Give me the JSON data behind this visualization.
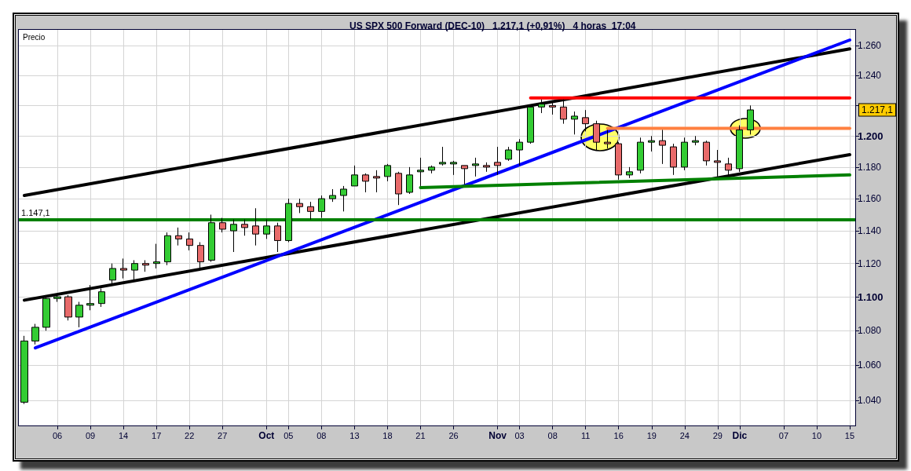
{
  "chart_data": {
    "type": "candlestick",
    "title": "US SPX 500 Forward (DEC-10)   1.217,1 (+0,91%)   4 horas  17:04",
    "ylabel": "Precio",
    "categories": [
      null,
      null,
      null,
      "06",
      null,
      null,
      "09",
      null,
      null,
      "14",
      null,
      null,
      "17",
      null,
      null,
      "22",
      null,
      null,
      "27",
      null,
      null,
      null,
      "Oct",
      null,
      "05",
      null,
      null,
      "08",
      null,
      null,
      "13",
      null,
      null,
      "18",
      null,
      null,
      "21",
      null,
      null,
      "26",
      null,
      null,
      null,
      "Nov",
      null,
      "03",
      null,
      null,
      "08",
      null,
      null,
      "11",
      null,
      null,
      "16",
      null,
      null,
      "19",
      null,
      null,
      "24",
      null,
      null,
      "29",
      null,
      "Dic",
      null,
      null,
      null,
      "07",
      null,
      null,
      "10",
      null,
      null,
      "15"
    ],
    "ohlc": [
      [
        1039,
        1077,
        1038,
        1074
      ],
      [
        1074,
        1084,
        1072,
        1082
      ],
      [
        1082,
        1101,
        1080,
        1099
      ],
      [
        1099,
        1102,
        1097,
        1100
      ],
      [
        1100,
        1101,
        1086,
        1088
      ],
      [
        1088,
        1097,
        1082,
        1095
      ],
      [
        1095,
        1107,
        1092,
        1096
      ],
      [
        1096,
        1105,
        1094,
        1103
      ],
      [
        1110,
        1120,
        1108,
        1117
      ],
      [
        1117,
        1123,
        1111,
        1116
      ],
      [
        1116,
        1122,
        1110,
        1120
      ],
      [
        1120,
        1122,
        1115,
        1119
      ],
      [
        1120,
        1132,
        1117,
        1121
      ],
      [
        1121,
        1139,
        1119,
        1137
      ],
      [
        1137,
        1142,
        1131,
        1135
      ],
      [
        1135,
        1139,
        1128,
        1131
      ],
      [
        1131,
        1133,
        1116,
        1121
      ],
      [
        1122,
        1150,
        1121,
        1145
      ],
      [
        1145,
        1148,
        1139,
        1141
      ],
      [
        1140,
        1147,
        1127,
        1144
      ],
      [
        1144,
        1147,
        1137,
        1142
      ],
      [
        1143,
        1154,
        1131,
        1138
      ],
      [
        1138,
        1147,
        1135,
        1143
      ],
      [
        1143,
        1145,
        1127,
        1134
      ],
      [
        1134,
        1160,
        1133,
        1157
      ],
      [
        1157,
        1160,
        1151,
        1155
      ],
      [
        1155,
        1158,
        1147,
        1152
      ],
      [
        1152,
        1162,
        1148,
        1160
      ],
      [
        1160,
        1166,
        1158,
        1162
      ],
      [
        1162,
        1168,
        1152,
        1166
      ],
      [
        1168,
        1181,
        1168,
        1175
      ],
      [
        1175,
        1176,
        1164,
        1171
      ],
      [
        1174,
        1178,
        1164,
        1173
      ],
      [
        1174,
        1182,
        1171,
        1181
      ],
      [
        1176,
        1177,
        1156,
        1163
      ],
      [
        1164,
        1180,
        1163,
        1175
      ],
      [
        1177,
        1186,
        1168,
        1178
      ],
      [
        1178,
        1181,
        1176,
        1180
      ],
      [
        1182,
        1193,
        1181,
        1183
      ],
      [
        1182,
        1184,
        1175,
        1183
      ],
      [
        1181,
        1181,
        1169,
        1179
      ],
      [
        1181,
        1186,
        1174,
        1182
      ],
      [
        1181,
        1183,
        1177,
        1180
      ],
      [
        1183,
        1193,
        1175,
        1181
      ],
      [
        1185,
        1193,
        1184,
        1191
      ],
      [
        1191,
        1198,
        1181,
        1196
      ],
      [
        1196,
        1220,
        1195,
        1219
      ],
      [
        1219,
        1224,
        1215,
        1221
      ],
      [
        1220,
        1222,
        1214,
        1219
      ],
      [
        1219,
        1224,
        1208,
        1211
      ],
      [
        1211,
        1216,
        1201,
        1213
      ],
      [
        1212,
        1217,
        1203,
        1208
      ],
      [
        1208,
        1210,
        1191,
        1196
      ],
      [
        1196,
        1204,
        1192,
        1195
      ],
      [
        1195,
        1196,
        1172,
        1175
      ],
      [
        1175,
        1180,
        1173,
        1177
      ],
      [
        1178,
        1199,
        1176,
        1196
      ],
      [
        1196,
        1200,
        1190,
        1197
      ],
      [
        1197,
        1204,
        1182,
        1194
      ],
      [
        1193,
        1195,
        1175,
        1180
      ],
      [
        1180,
        1199,
        1178,
        1196
      ],
      [
        1196,
        1200,
        1194,
        1197
      ],
      [
        1196,
        1197,
        1181,
        1184
      ],
      [
        1184,
        1191,
        1174,
        1183
      ],
      [
        1182,
        1186,
        1174,
        1178
      ],
      [
        1179,
        1207,
        1177,
        1204
      ],
      [
        1204,
        1220,
        1201,
        1217.1
      ],
      null,
      null,
      null,
      null,
      null,
      null,
      null,
      null,
      null
    ],
    "colors": [
      "#33cc33",
      "#33cc33",
      "#33cc33",
      "#33cc33",
      "#e86a6a",
      "#33cc33",
      "#33cc33",
      "#33cc33",
      "#33cc33",
      "#e86a6a",
      "#33cc33",
      "#e86a6a",
      "#33cc33",
      "#33cc33",
      "#e86a6a",
      "#e86a6a",
      "#e86a6a",
      "#33cc33",
      "#e86a6a",
      "#33cc33",
      "#e86a6a",
      "#e86a6a",
      "#33cc33",
      "#e86a6a",
      "#33cc33",
      "#e86a6a",
      "#e86a6a",
      "#33cc33",
      "#33cc33",
      "#33cc33",
      "#33cc33",
      "#e86a6a",
      "#e86a6a",
      "#33cc33",
      "#e86a6a",
      "#33cc33",
      "#33cc33",
      "#33cc33",
      "#33cc33",
      "#33cc33",
      "#e86a6a",
      "#33cc33",
      "#e86a6a",
      "#e86a6a",
      "#33cc33",
      "#33cc33",
      "#33cc33",
      "#33cc33",
      "#e86a6a",
      "#e86a6a",
      "#33cc33",
      "#e86a6a",
      "#e86a6a",
      "#e86a6a",
      "#e86a6a",
      "#33cc33",
      "#33cc33",
      "#33cc33",
      "#e86a6a",
      "#e86a6a",
      "#33cc33",
      "#33cc33",
      "#e86a6a",
      "#e86a6a",
      "#e86a6a",
      "#33cc33",
      "#33cc33",
      null,
      null,
      null,
      null,
      null,
      null,
      null,
      null,
      null
    ],
    "series": [
      {
        "type": "line",
        "color": "#000000",
        "values": [
          1162,
          null,
          null,
          null,
          null,
          null,
          null,
          null,
          null,
          null,
          null,
          null,
          null,
          null,
          null,
          null,
          null,
          null,
          null,
          null,
          null,
          null,
          null,
          null,
          null,
          null,
          null,
          null,
          null,
          null,
          null,
          null,
          null,
          null,
          null,
          null,
          null,
          null,
          null,
          null,
          null,
          null,
          null,
          null,
          null,
          null,
          null,
          null,
          null,
          null,
          null,
          null,
          null,
          null,
          null,
          null,
          null,
          null,
          null,
          null,
          null,
          null,
          null,
          null,
          null,
          null,
          null,
          null,
          null,
          null,
          null,
          null,
          null,
          null,
          null,
          1258
        ]
      },
      {
        "type": "line",
        "color": "#000000",
        "values": [
          1098,
          null,
          null,
          null,
          null,
          null,
          null,
          null,
          null,
          null,
          null,
          null,
          null,
          null,
          null,
          null,
          null,
          null,
          null,
          null,
          null,
          null,
          null,
          null,
          null,
          null,
          null,
          null,
          null,
          null,
          null,
          null,
          null,
          null,
          null,
          null,
          null,
          null,
          null,
          null,
          null,
          null,
          null,
          null,
          null,
          null,
          null,
          null,
          null,
          null,
          null,
          null,
          null,
          null,
          null,
          null,
          null,
          null,
          null,
          null,
          null,
          null,
          null,
          null,
          null,
          null,
          null,
          null,
          null,
          null,
          null,
          null,
          null,
          null,
          null,
          1188
        ]
      },
      {
        "type": "line",
        "color": "#0000ff",
        "values": [
          null,
          1070,
          null,
          null,
          null,
          null,
          null,
          null,
          null,
          null,
          null,
          null,
          null,
          null,
          null,
          null,
          null,
          null,
          null,
          null,
          null,
          null,
          null,
          null,
          null,
          null,
          null,
          null,
          null,
          null,
          null,
          null,
          null,
          null,
          null,
          null,
          null,
          null,
          null,
          null,
          null,
          null,
          null,
          null,
          null,
          null,
          null,
          null,
          null,
          null,
          null,
          null,
          null,
          null,
          null,
          null,
          null,
          null,
          null,
          null,
          null,
          null,
          null,
          null,
          null,
          null,
          null,
          null,
          null,
          null,
          null,
          null,
          null,
          null,
          null,
          1264
        ]
      },
      {
        "type": "line",
        "color": "#008000",
        "values": [
          null,
          null,
          null,
          null,
          null,
          null,
          null,
          null,
          null,
          null,
          null,
          null,
          null,
          null,
          null,
          null,
          null,
          null,
          null,
          null,
          null,
          null,
          null,
          null,
          null,
          null,
          null,
          null,
          null,
          null,
          null,
          null,
          null,
          null,
          null,
          null,
          1167,
          null,
          null,
          null,
          null,
          null,
          null,
          null,
          null,
          null,
          null,
          null,
          null,
          null,
          null,
          null,
          null,
          null,
          null,
          null,
          null,
          null,
          null,
          null,
          null,
          null,
          null,
          null,
          null,
          null,
          null,
          null,
          null,
          null,
          null,
          null,
          null,
          null,
          null,
          1175
        ]
      },
      {
        "type": "line",
        "color": "#ff0000",
        "values": [
          null,
          null,
          null,
          null,
          null,
          null,
          null,
          null,
          null,
          null,
          null,
          null,
          null,
          null,
          null,
          null,
          null,
          null,
          null,
          null,
          null,
          null,
          null,
          null,
          null,
          null,
          null,
          null,
          null,
          null,
          null,
          null,
          null,
          null,
          null,
          null,
          null,
          null,
          null,
          null,
          null,
          null,
          null,
          null,
          null,
          null,
          1225,
          null,
          null,
          null,
          null,
          null,
          null,
          null,
          null,
          null,
          null,
          null,
          null,
          null,
          null,
          null,
          null,
          null,
          null,
          null,
          null,
          null,
          null,
          null,
          null,
          null,
          null,
          null,
          null,
          1225
        ]
      },
      {
        "type": "line",
        "color": "#ff8040",
        "values": [
          null,
          null,
          null,
          null,
          null,
          null,
          null,
          null,
          null,
          null,
          null,
          null,
          null,
          null,
          null,
          null,
          null,
          null,
          null,
          null,
          null,
          null,
          null,
          null,
          null,
          null,
          null,
          null,
          null,
          null,
          null,
          null,
          null,
          null,
          null,
          null,
          null,
          null,
          null,
          null,
          null,
          null,
          null,
          null,
          null,
          null,
          null,
          null,
          null,
          null,
          null,
          null,
          null,
          1205,
          null,
          null,
          null,
          null,
          null,
          null,
          null,
          null,
          null,
          null,
          null,
          null,
          null,
          null,
          null,
          null,
          null,
          null,
          null,
          null,
          null,
          1205
        ]
      }
    ],
    "log": true,
    "ylim": [
      1026,
      1271
    ],
    "yticks": [
      {
        "value": 1040,
        "label": "1.040"
      },
      {
        "value": 1060,
        "label": "1.060"
      },
      {
        "value": 1080,
        "label": "1.080"
      },
      {
        "value": 1100,
        "label": "1.100"
      },
      {
        "value": 1120,
        "label": "1.120"
      },
      {
        "value": 1140,
        "label": "1.140"
      },
      {
        "value": 1160,
        "label": "1.160"
      },
      {
        "value": 1180,
        "label": "1.180"
      },
      {
        "value": 1200,
        "label": "1.200"
      },
      {
        "value": 1220,
        "label": null
      },
      {
        "value": 1240,
        "label": "1.240"
      },
      {
        "value": 1260,
        "label": "1.260"
      }
    ],
    "grid": true,
    "ref_lines": [
      {
        "axis": "y",
        "value": 1147.1,
        "label": "1.147,1",
        "color": "#008000"
      }
    ],
    "annotations": [
      "1.217,1"
    ]
  }
}
